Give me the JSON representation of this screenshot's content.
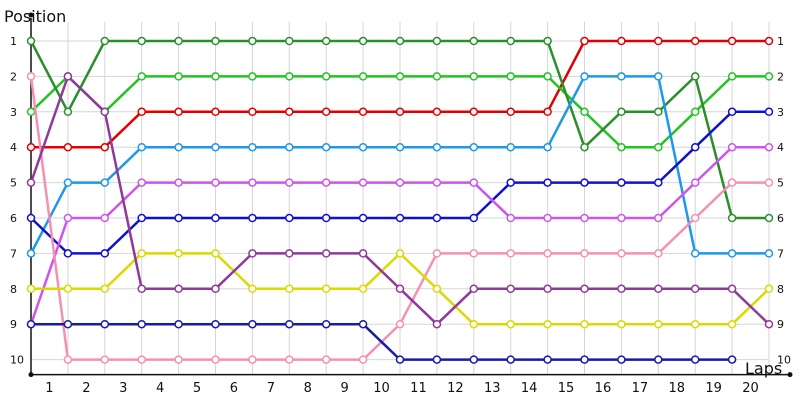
{
  "chart_data": {
    "type": "line",
    "title": "",
    "ylabel": "Position",
    "xlabel": "Laps",
    "x": [
      0,
      1,
      2,
      3,
      4,
      5,
      6,
      7,
      8,
      9,
      10,
      11,
      12,
      13,
      14,
      15,
      16,
      17,
      18,
      19,
      20
    ],
    "xticks": [
      1,
      2,
      3,
      4,
      5,
      6,
      7,
      8,
      9,
      10,
      11,
      12,
      13,
      14,
      15,
      16,
      17,
      18,
      19,
      20
    ],
    "yticks": [
      1,
      2,
      3,
      4,
      5,
      6,
      7,
      8,
      9,
      10
    ],
    "ylim": [
      1,
      10
    ],
    "y_inverted": true,
    "grid": true,
    "legend": "none",
    "series": [
      {
        "color": "#e00000",
        "values": [
          4,
          4,
          4,
          3,
          3,
          3,
          3,
          3,
          3,
          3,
          3,
          3,
          3,
          3,
          3,
          1,
          1,
          1,
          1,
          1,
          1
        ]
      },
      {
        "color": "#22c422",
        "values": [
          3,
          2,
          3,
          2,
          2,
          2,
          2,
          2,
          2,
          2,
          2,
          2,
          2,
          2,
          2,
          3,
          4,
          4,
          3,
          2,
          2
        ]
      },
      {
        "color": "#2a8f2a",
        "values": [
          1,
          3,
          1,
          1,
          1,
          1,
          1,
          1,
          1,
          1,
          1,
          1,
          1,
          1,
          1,
          4,
          3,
          3,
          2,
          6,
          6
        ]
      },
      {
        "color": "#1e98e8",
        "values": [
          7,
          5,
          5,
          4,
          4,
          4,
          4,
          4,
          4,
          4,
          4,
          4,
          4,
          4,
          4,
          2,
          2,
          2,
          7,
          7,
          7
        ]
      },
      {
        "color": "#1010d0",
        "values": [
          6,
          7,
          7,
          6,
          6,
          6,
          6,
          6,
          6,
          6,
          6,
          6,
          6,
          5,
          5,
          5,
          5,
          5,
          4,
          3,
          3
        ]
      },
      {
        "color": "#cc55ee",
        "values": [
          9,
          6,
          6,
          5,
          5,
          5,
          5,
          5,
          5,
          5,
          5,
          5,
          5,
          6,
          6,
          6,
          6,
          6,
          5,
          4,
          4
        ]
      },
      {
        "color": "#f590b5",
        "values": [
          2,
          10,
          10,
          10,
          10,
          10,
          10,
          10,
          10,
          10,
          9,
          7,
          7,
          7,
          7,
          7,
          7,
          7,
          6,
          5,
          5
        ]
      },
      {
        "color": "#dada00",
        "values": [
          8,
          8,
          8,
          7,
          7,
          7,
          8,
          8,
          8,
          8,
          7,
          8,
          9,
          9,
          9,
          9,
          9,
          9,
          9,
          9,
          8
        ]
      },
      {
        "color": "#1a1aa8",
        "values": [
          9,
          9,
          9,
          9,
          9,
          9,
          9,
          9,
          9,
          9,
          10,
          10,
          10,
          10,
          10,
          10,
          10,
          10,
          10,
          10,
          null
        ]
      },
      {
        "color": "#8f3a9a",
        "values": [
          5,
          2,
          3,
          8,
          8,
          8,
          7,
          7,
          7,
          7,
          8,
          9,
          8,
          8,
          8,
          8,
          8,
          8,
          8,
          8,
          9
        ]
      }
    ]
  }
}
